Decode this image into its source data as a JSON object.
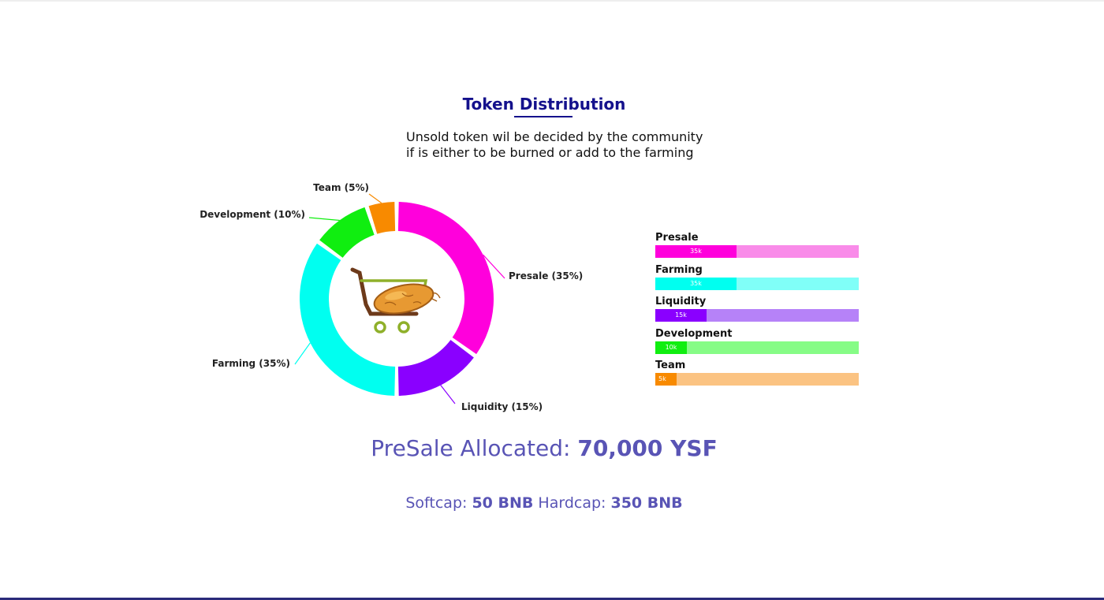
{
  "header": {
    "title": "Token Distribution",
    "subtitle_line1": "Unsold token wil be decided by the community",
    "subtitle_line2": "if is either to be burned or add to the farming"
  },
  "chart_data": [
    {
      "type": "pie",
      "variant": "donut",
      "center_icon": "shopping-cart-with-sweet-potato-icon",
      "slices": [
        {
          "label": "Presale",
          "value": 35,
          "label_text": "Presale  (35%)",
          "color": "#ff00dc"
        },
        {
          "label": "Liquidity",
          "value": 15,
          "label_text": "Liquidity  (15%)",
          "color": "#8a00ff"
        },
        {
          "label": "Farming",
          "value": 35,
          "label_text": "Farming  (35%)",
          "color": "#00fff0"
        },
        {
          "label": "Development",
          "value": 10,
          "label_text": "Development  (10%)",
          "color": "#10ee10"
        },
        {
          "label": "Team",
          "value": 5,
          "label_text": "Team  (5%)",
          "color": "#f88a00"
        }
      ]
    },
    {
      "type": "bar",
      "orientation": "horizontal",
      "max": 100,
      "bars": [
        {
          "label": "Presale",
          "value": 35,
          "value_label": "35k",
          "fill_fraction": 0.4,
          "color": "#ff00dc",
          "track_color": "#f98be9"
        },
        {
          "label": "Farming",
          "value": 35,
          "value_label": "35k",
          "fill_fraction": 0.4,
          "color": "#00fff0",
          "track_color": "#80fff8"
        },
        {
          "label": "Liquidity",
          "value": 15,
          "value_label": "15k",
          "fill_fraction": 0.25,
          "color": "#8a00ff",
          "track_color": "#b682f8"
        },
        {
          "label": "Development",
          "value": 10,
          "value_label": "10k",
          "fill_fraction": 0.155,
          "color": "#10ee10",
          "track_color": "#86fc86"
        },
        {
          "label": "Team",
          "value": 5,
          "value_label": "5k",
          "fill_fraction": 0.105,
          "color": "#f88a00",
          "track_color": "#fbc382"
        }
      ]
    }
  ],
  "presale": {
    "label": "PreSale Allocated: ",
    "value": "70,000 YSF"
  },
  "caps": {
    "softcap_label": "Softcap: ",
    "softcap_value": "50 BNB",
    "hardcap_label": " Hardcap: ",
    "hardcap_value": "350 BNB"
  },
  "colors": {
    "title": "#14118c",
    "accent_text": "#5954b5",
    "bottom_rule": "#2b2b7a"
  }
}
